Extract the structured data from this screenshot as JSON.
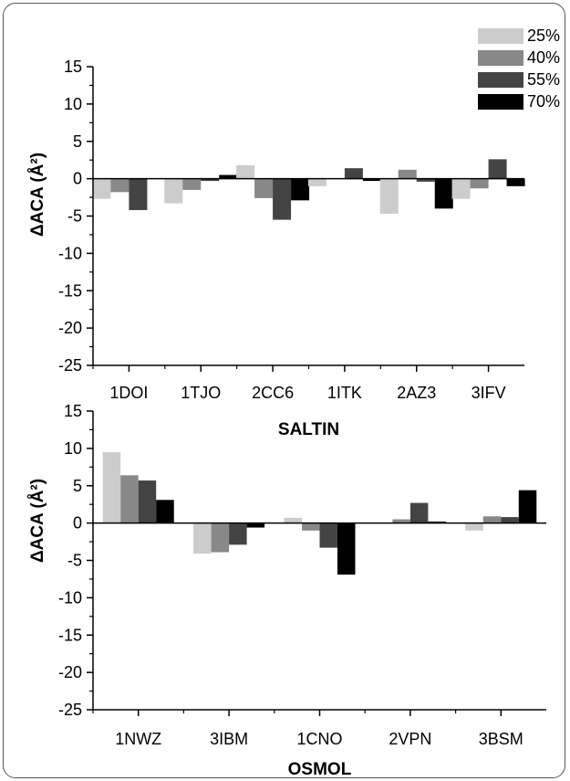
{
  "chart_data": [
    {
      "type": "bar",
      "title": "",
      "xlabel": "SALTIN",
      "ylabel": "ΔACA (Å²)",
      "ylim": [
        -25,
        15
      ],
      "yticks": [
        15,
        10,
        5,
        0,
        -5,
        -10,
        -15,
        -20,
        -25
      ],
      "categories": [
        "1DOI",
        "1TJO",
        "2CC6",
        "1ITK",
        "2AZ3",
        "3IFV"
      ],
      "series": [
        {
          "name": "25%",
          "color": "#cccccc",
          "values": [
            -2.7,
            -3.3,
            1.8,
            -1.0,
            -4.7,
            -2.7
          ]
        },
        {
          "name": "40%",
          "color": "#888888",
          "values": [
            -1.8,
            -1.5,
            -2.6,
            0.0,
            1.2,
            -1.3
          ]
        },
        {
          "name": "55%",
          "color": "#444444",
          "values": [
            -4.2,
            -0.3,
            -5.5,
            1.4,
            -0.4,
            2.6
          ]
        },
        {
          "name": "70%",
          "color": "#000000",
          "values": [
            0.0,
            0.5,
            -2.9,
            -0.3,
            -4.0,
            -1.0
          ]
        }
      ]
    },
    {
      "type": "bar",
      "title": "",
      "xlabel": "OSMOL",
      "ylabel": "ΔACA (Å²)",
      "ylim": [
        -25,
        15
      ],
      "yticks": [
        15,
        10,
        5,
        0,
        -5,
        -10,
        -15,
        -20,
        -25
      ],
      "categories": [
        "1NWZ",
        "3IBM",
        "1CNO",
        "2VPN",
        "3BSM"
      ],
      "series": [
        {
          "name": "25%",
          "color": "#cccccc",
          "values": [
            9.5,
            -4.1,
            0.7,
            0.0,
            -1.0
          ]
        },
        {
          "name": "40%",
          "color": "#888888",
          "values": [
            6.4,
            -3.9,
            -1.0,
            0.5,
            0.9
          ]
        },
        {
          "name": "55%",
          "color": "#444444",
          "values": [
            5.7,
            -2.9,
            -3.3,
            2.7,
            0.8
          ]
        },
        {
          "name": "70%",
          "color": "#000000",
          "values": [
            3.1,
            -0.6,
            -6.9,
            0.2,
            4.4
          ]
        }
      ]
    }
  ],
  "legend": [
    {
      "label": "25%",
      "color": "#cccccc"
    },
    {
      "label": "40%",
      "color": "#888888"
    },
    {
      "label": "55%",
      "color": "#444444"
    },
    {
      "label": "70%",
      "color": "#000000"
    }
  ]
}
